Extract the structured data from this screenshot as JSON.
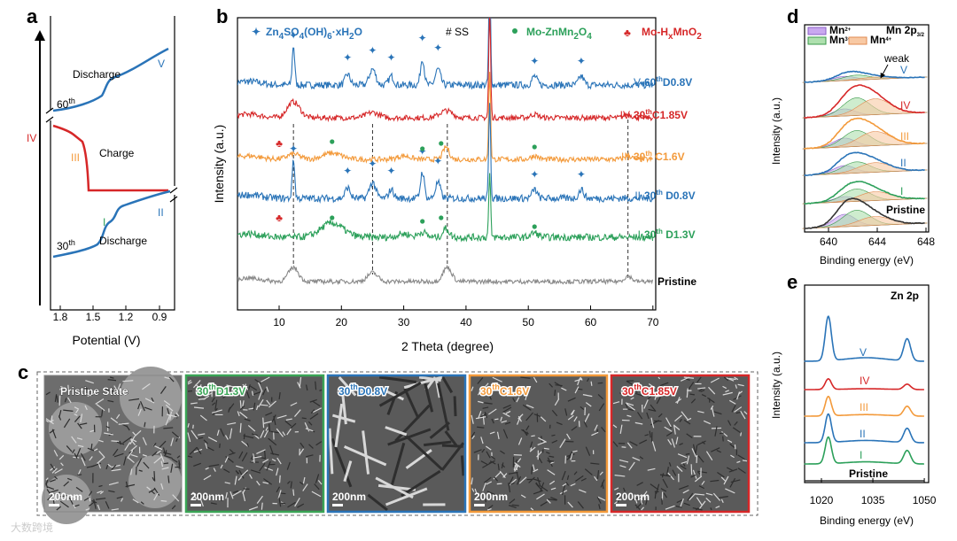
{
  "watermark": "大数跨境",
  "panel_a": {
    "label": "a",
    "discharge_top": "Discharge",
    "v": "V",
    "cycle60": [
      "60",
      "th"
    ],
    "iv": "IV",
    "iii": "III",
    "charge": "Charge",
    "ii": "II",
    "i": "I",
    "cycle30": [
      "30",
      "th"
    ],
    "discharge_bottom": "Discharge",
    "x_ticks": [
      "1.8",
      "1.5",
      "1.2",
      "0.9"
    ],
    "x_label": "Potential (V)"
  },
  "panel_b": {
    "label": "b",
    "legend": {
      "zn": [
        "Zn",
        "4",
        "SO",
        "4",
        "(OH)",
        "6",
        "·xH",
        "2",
        "O"
      ],
      "ss": "# SS",
      "znmn": [
        "Mo-ZnMn",
        "2",
        "O",
        "4"
      ],
      "hmn": [
        "Mo-H",
        "x",
        "MnO",
        "2"
      ]
    },
    "traces": [
      {
        "numeral": "V",
        "label": [
          "60",
          "th",
          "D0.8V"
        ]
      },
      {
        "numeral": "IV",
        "label": [
          "30",
          "th",
          "C1.85V"
        ]
      },
      {
        "numeral": "III",
        "label": [
          "30",
          "th",
          " C1.6V"
        ]
      },
      {
        "numeral": "II",
        "label": [
          "30",
          "th",
          " D0.8V"
        ]
      },
      {
        "numeral": "I",
        "label": [
          "30",
          "th",
          " D1.3V"
        ]
      }
    ],
    "pristine": "Pristine",
    "x_ticks": [
      10,
      20,
      30,
      40,
      50,
      60,
      70
    ],
    "x_label": "2 Theta (degree)",
    "y_label": "Intensity (a.u.)"
  },
  "panel_c": {
    "label": "c",
    "images": [
      {
        "text": "Pristine State",
        "scale": "200nm"
      },
      {
        "cycle": "30",
        "sup": "th",
        "text": "D1.3V",
        "scale": "200nm"
      },
      {
        "cycle": "30",
        "sup": "th",
        "text": "D0.8V",
        "scale": "200nm"
      },
      {
        "cycle": "30",
        "sup": "th",
        "text": "C1.6V",
        "scale": "200nm"
      },
      {
        "cycle": "30",
        "sup": "th",
        "text": "C1.85V",
        "scale": "200nm"
      }
    ]
  },
  "panel_d": {
    "label": "d",
    "legend": [
      {
        "base": "Mn",
        "sup": "2+"
      },
      {
        "base": "Mn",
        "sup": "3+"
      },
      {
        "base": "Mn",
        "sup": "4+"
      }
    ],
    "title": [
      "Mn 2p",
      "3/2"
    ],
    "weak": "weak",
    "numerals": [
      "V",
      "IV",
      "III",
      "II",
      "I"
    ],
    "pristine": "Pristine",
    "x_ticks": [
      640,
      644,
      648
    ],
    "x_label": "Binding energy (eV)",
    "y_label": "Intensity (a.u.)"
  },
  "panel_e": {
    "label": "e",
    "title": "Zn 2p",
    "numerals": [
      "V",
      "IV",
      "III",
      "II",
      "I"
    ],
    "pristine": "Pristine",
    "x_ticks": [
      1020,
      1035,
      1050
    ],
    "x_label": "Binding energy (eV)",
    "y_label": "Intensity (a.u.)"
  }
}
